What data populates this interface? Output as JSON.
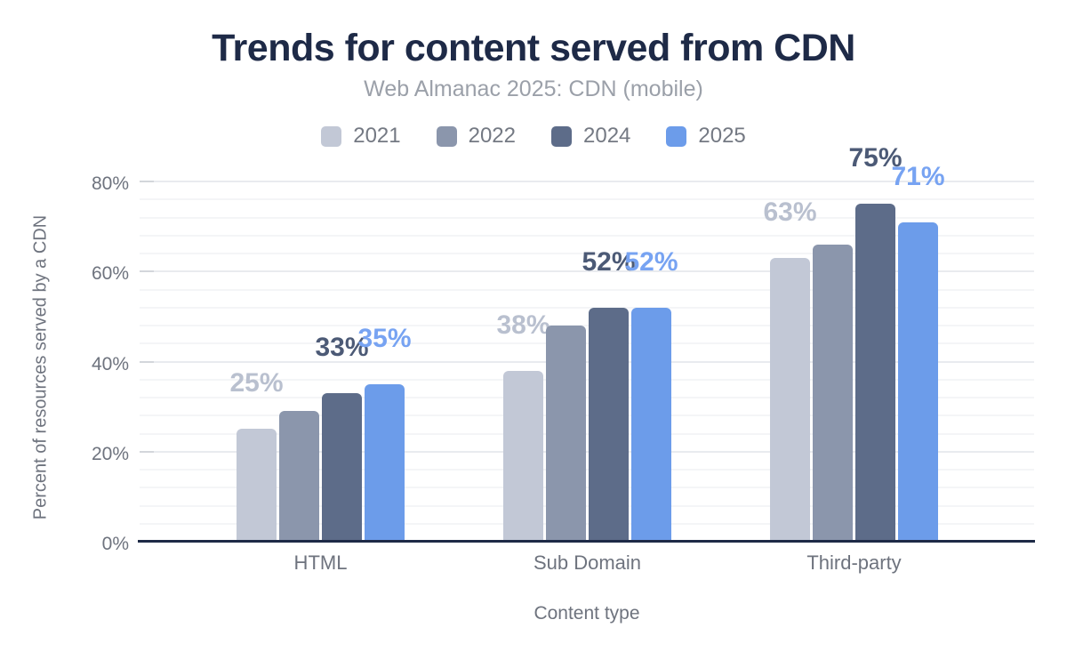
{
  "chart_data": {
    "type": "bar",
    "title": "Trends for content served from CDN",
    "subtitle": "Web Almanac 2025: CDN (mobile)",
    "xlabel": "Content type",
    "ylabel": "Percent of resources served by a CDN",
    "categories": [
      "HTML",
      "Sub Domain",
      "Third-party"
    ],
    "series": [
      {
        "name": "2021",
        "values": [
          25,
          38,
          63
        ],
        "labels": [
          "25%",
          "38%",
          "63%"
        ],
        "color": "#c2c8d6",
        "label_color": "#b9c0cf"
      },
      {
        "name": "2022",
        "values": [
          29,
          48,
          66
        ],
        "labels": [
          "",
          "",
          ""
        ],
        "color": "#8b96ac",
        "label_color": ""
      },
      {
        "name": "2024",
        "values": [
          33,
          52,
          75
        ],
        "labels": [
          "33%",
          "52%",
          "75%"
        ],
        "color": "#5d6c89",
        "label_color": "#4c5a76"
      },
      {
        "name": "2025",
        "values": [
          35,
          52,
          71
        ],
        "labels": [
          "35%",
          "52%",
          "71%"
        ],
        "color": "#6c9cea",
        "label_color": "#77a3f2"
      }
    ],
    "ylim": [
      0,
      80
    ],
    "yticks": [
      {
        "value": 0,
        "label": "0%"
      },
      {
        "value": 20,
        "label": "20%"
      },
      {
        "value": 40,
        "label": "40%"
      },
      {
        "value": 60,
        "label": "60%"
      },
      {
        "value": 80,
        "label": "80%"
      }
    ],
    "minor_grid_step": 4,
    "legend_position": "top",
    "grid": "horizontal"
  },
  "colors": {
    "title": "#1e2a47",
    "subtitle": "#9ba0a9",
    "legend_text": "#747983",
    "axis_text": "#6e737e",
    "axis_line": "#1e2a47",
    "grid_major": "#e9ebef",
    "grid_minor": "#f4f5f7",
    "tick_mark": "#d3d6db",
    "background": "#ffffff"
  }
}
